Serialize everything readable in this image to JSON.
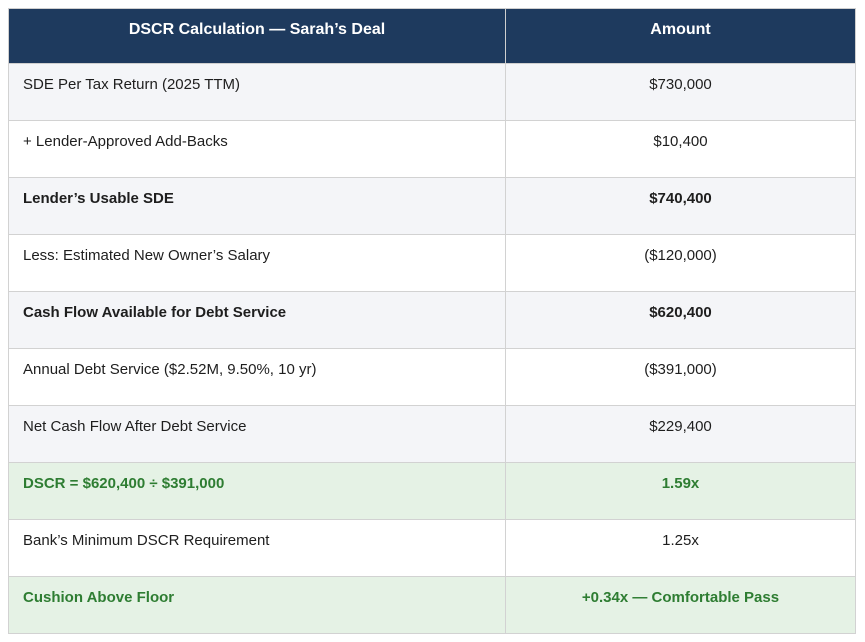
{
  "table": {
    "columns": [
      {
        "label": "DSCR Calculation — Sarah’s Deal"
      },
      {
        "label": "Amount"
      }
    ],
    "rows": [
      {
        "label": "SDE Per Tax Return (2025 TTM)",
        "amount": "$730,000",
        "variant": "shaded",
        "emphasis": "normal"
      },
      {
        "label": "+ Lender-Approved Add-Backs",
        "amount": "$10,400",
        "variant": "plain",
        "emphasis": "normal"
      },
      {
        "label": "Lender’s Usable SDE",
        "amount": "$740,400",
        "variant": "shaded",
        "emphasis": "bold"
      },
      {
        "label": "Less: Estimated New Owner’s Salary",
        "amount": "($120,000)",
        "variant": "plain",
        "emphasis": "normal"
      },
      {
        "label": "Cash Flow Available for Debt Service",
        "amount": "$620,400",
        "variant": "shaded",
        "emphasis": "bold"
      },
      {
        "label": "Annual Debt Service ($2.52M, 9.50%, 10 yr)",
        "amount": "($391,000)",
        "variant": "plain",
        "emphasis": "normal"
      },
      {
        "label": "Net Cash Flow After Debt Service",
        "amount": "$229,400",
        "variant": "shaded",
        "emphasis": "normal"
      },
      {
        "label": "DSCR = $620,400 ÷ $391,000",
        "amount": "1.59x",
        "variant": "highlight",
        "emphasis": "bold"
      },
      {
        "label": "Bank’s Minimum DSCR Requirement",
        "amount": "1.25x",
        "variant": "plain",
        "emphasis": "normal"
      },
      {
        "label": "Cushion Above Floor",
        "amount": "+0.34x — Comfortable Pass",
        "variant": "highlight",
        "emphasis": "bold"
      }
    ]
  },
  "colors": {
    "header_bg": "#1e3a5e",
    "header_text": "#ffffff",
    "shaded_row_bg": "#f4f5f8",
    "plain_row_bg": "#ffffff",
    "highlight_row_bg": "#e5f2e5",
    "highlight_text": "#2e7d32",
    "body_text": "#1e1e1e",
    "border": "#d2d2d2"
  }
}
